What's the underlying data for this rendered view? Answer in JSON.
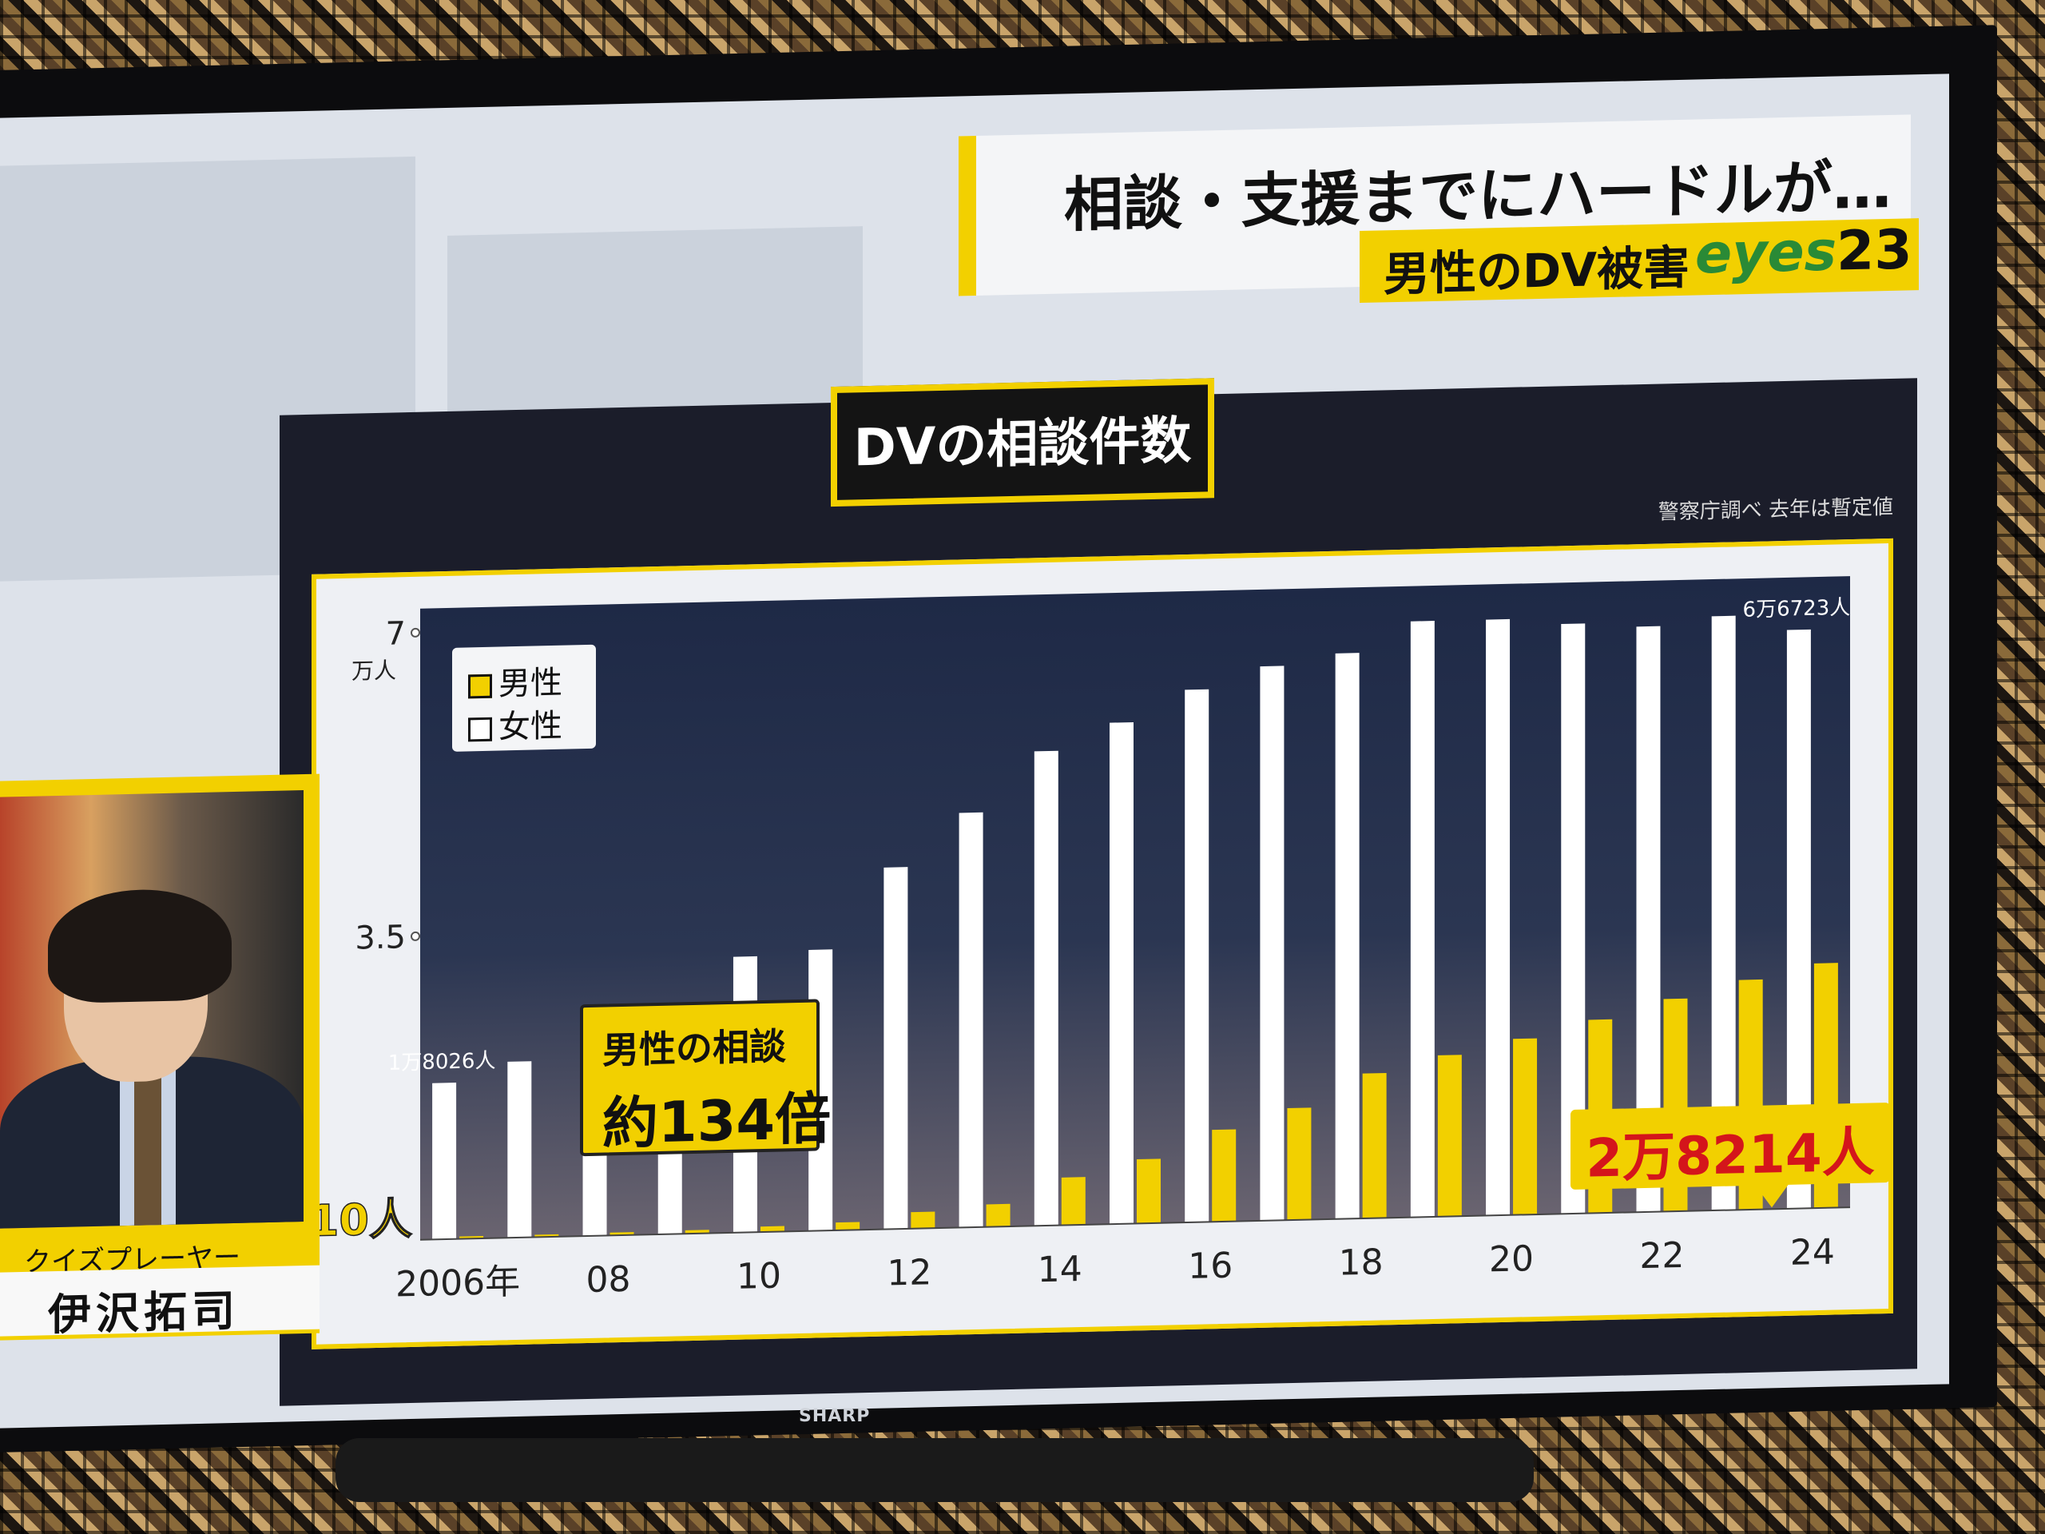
{
  "header": {
    "headline": "相談・支援までにハードルが…",
    "subtitle": "男性のDV被害",
    "logo_text": "eyes",
    "logo_num": "23"
  },
  "chart_title": "DVの相談件数",
  "source_note": "警察庁調べ 去年は暫定値",
  "callouts": {
    "ratio_line1": "男性の相談",
    "ratio_line2": "約134倍",
    "last_value": "2万8214人"
  },
  "presenter": {
    "role": "クイズプレーヤー",
    "name": "伊沢拓司"
  },
  "tv_brand": "SHARP",
  "colors": {
    "accent_yellow": "#f2d000",
    "female_bar": "#ffffff",
    "male_bar": "#f2d000",
    "callout_text_red": "#d4151b"
  },
  "chart_data": {
    "type": "bar",
    "title": "DVの相談件数",
    "ylabel": "万人",
    "ylim": [
      0,
      7
    ],
    "y_ticks": [
      {
        "value": 3.5,
        "label": "3.5"
      },
      {
        "value": 7,
        "label": "7"
      }
    ],
    "y_unit_label": "万人",
    "categories": [
      2006,
      2007,
      2008,
      2009,
      2010,
      2011,
      2012,
      2013,
      2014,
      2015,
      2016,
      2017,
      2018,
      2019,
      2020,
      2021,
      2022,
      2023,
      2024
    ],
    "x_tick_labels": [
      {
        "year": 2006,
        "label": "2006年"
      },
      {
        "year": 2008,
        "label": "08"
      },
      {
        "year": 2010,
        "label": "10"
      },
      {
        "year": 2012,
        "label": "12"
      },
      {
        "year": 2014,
        "label": "14"
      },
      {
        "year": 2016,
        "label": "16"
      },
      {
        "year": 2018,
        "label": "18"
      },
      {
        "year": 2020,
        "label": "20"
      },
      {
        "year": 2022,
        "label": "22"
      },
      {
        "year": 2024,
        "label": "24"
      }
    ],
    "legend": [
      "男性",
      "女性"
    ],
    "legend_position": "top-left",
    "series": [
      {
        "name": "女性",
        "values": [
          1.8026,
          2.03,
          2.37,
          2.65,
          3.18,
          3.24,
          4.17,
          4.78,
          5.47,
          5.78,
          6.14,
          6.39,
          6.52,
          6.87,
          6.87,
          6.8,
          6.75,
          6.85,
          6.6723
        ]
      },
      {
        "name": "男性",
        "values": [
          0.021,
          0.025,
          0.033,
          0.04,
          0.063,
          0.09,
          0.19,
          0.26,
          0.55,
          0.74,
          1.06,
          1.29,
          1.67,
          1.86,
          2.03,
          2.23,
          2.45,
          2.65,
          2.8214
        ]
      }
    ],
    "data_labels": [
      {
        "series": "女性",
        "year": 2006,
        "label": "1万8026人"
      },
      {
        "series": "男性",
        "year": 2006,
        "label": "210人"
      },
      {
        "series": "女性",
        "year": 2024,
        "label": "6万6723人"
      }
    ]
  }
}
